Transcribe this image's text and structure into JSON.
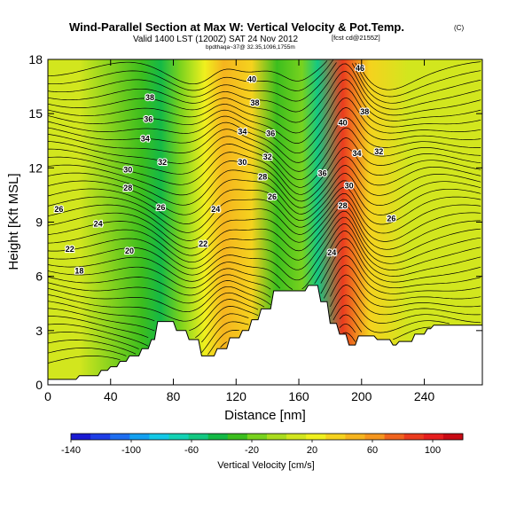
{
  "chart_data": {
    "type": "heatmap",
    "title": "Wind-Parallel Section at Max W: Vertical Velocity & Pot.Temp.",
    "title_mark": "(C)",
    "subtitle": "Valid 1400 LST (1200Z) SAT 24 Nov 2012",
    "subtitle_note": "[fcst cd@2155Z]",
    "subtitle2": "bpdthaqa~37@ 32.35,1096,1755m",
    "xlabel": "Distance [nm]",
    "ylabel": "Height [Kft MSL]",
    "xlim": [
      0,
      277
    ],
    "ylim": [
      0,
      18
    ],
    "xticks": [
      0,
      40,
      80,
      120,
      160,
      200,
      240
    ],
    "yticks": [
      0,
      3,
      6,
      9,
      12,
      15,
      18
    ],
    "grid": false,
    "colorbar": {
      "label": "Vertical Velocity [cm/s]",
      "ticks": [
        -140,
        -100,
        -60,
        -20,
        20,
        60,
        100
      ],
      "range": [
        -140,
        120
      ],
      "colors": [
        "#1a1ad2",
        "#1e3ee6",
        "#1e6ef0",
        "#14a0f0",
        "#14c8e6",
        "#14d2b4",
        "#14c882",
        "#14b946",
        "#3cbe1e",
        "#78d21e",
        "#aadc1e",
        "#d2e61e",
        "#f0f01e",
        "#f5d21e",
        "#f5b41e",
        "#f5961e",
        "#f0641e",
        "#eb3c1e",
        "#e61e1e",
        "#c80a14"
      ]
    },
    "terrain_profile": {
      "x": [
        0,
        18,
        20,
        32,
        34,
        38,
        40,
        44,
        46,
        50,
        52,
        58,
        60,
        64,
        66,
        68,
        70,
        80,
        82,
        88,
        90,
        96,
        98,
        106,
        108,
        114,
        116,
        122,
        124,
        128,
        130,
        134,
        136,
        142,
        144,
        164,
        166,
        172,
        174,
        178,
        180,
        184,
        186,
        190,
        192,
        196,
        198,
        208,
        210,
        218,
        220,
        222,
        224,
        232,
        234,
        240,
        242,
        244,
        246,
        277
      ],
      "height": [
        0.3,
        0.3,
        0.5,
        0.5,
        0.8,
        0.8,
        1.0,
        1.0,
        1.3,
        1.3,
        1.6,
        1.6,
        2.0,
        2.0,
        2.5,
        2.5,
        3.5,
        3.5,
        3.0,
        3.0,
        2.5,
        2.5,
        1.6,
        1.6,
        2.0,
        2.0,
        2.6,
        2.6,
        3.0,
        3.0,
        3.6,
        3.6,
        4.2,
        4.2,
        5.2,
        5.2,
        5.5,
        5.5,
        4.6,
        4.6,
        3.4,
        3.4,
        2.8,
        2.8,
        2.2,
        2.2,
        2.7,
        2.7,
        2.5,
        2.5,
        2.2,
        2.2,
        2.4,
        2.4,
        2.8,
        2.8,
        3.1,
        3.1,
        3.3,
        3.3
      ]
    },
    "velocity_features": [
      {
        "x": 0,
        "w": 8
      },
      {
        "x": 20,
        "w": 10
      },
      {
        "x": 60,
        "w": -25
      },
      {
        "x": 72,
        "w": -45
      },
      {
        "x": 84,
        "w": -20
      },
      {
        "x": 100,
        "w": 25
      },
      {
        "x": 112,
        "w": 45
      },
      {
        "x": 130,
        "w": 30
      },
      {
        "x": 146,
        "w": -30
      },
      {
        "x": 162,
        "w": -15
      },
      {
        "x": 172,
        "w": -50
      },
      {
        "x": 188,
        "w": 90
      },
      {
        "x": 205,
        "w": 35
      },
      {
        "x": 230,
        "w": 15
      },
      {
        "x": 277,
        "w": 10
      }
    ],
    "contour_labels": [
      {
        "text": "38",
        "x": 65,
        "y": 15.9
      },
      {
        "text": "36",
        "x": 64,
        "y": 14.7
      },
      {
        "text": "34",
        "x": 62,
        "y": 13.6
      },
      {
        "text": "32",
        "x": 73,
        "y": 12.3
      },
      {
        "text": "30",
        "x": 51,
        "y": 11.9
      },
      {
        "text": "28",
        "x": 51,
        "y": 10.9
      },
      {
        "text": "26",
        "x": 7,
        "y": 9.7
      },
      {
        "text": "26",
        "x": 72,
        "y": 9.8
      },
      {
        "text": "24",
        "x": 32,
        "y": 8.9
      },
      {
        "text": "22",
        "x": 14,
        "y": 7.5
      },
      {
        "text": "20",
        "x": 52,
        "y": 7.4
      },
      {
        "text": "18",
        "x": 20,
        "y": 6.3
      },
      {
        "text": "40",
        "x": 130,
        "y": 16.9
      },
      {
        "text": "38",
        "x": 132,
        "y": 15.6
      },
      {
        "text": "36",
        "x": 142,
        "y": 13.9
      },
      {
        "text": "34",
        "x": 124,
        "y": 14.0
      },
      {
        "text": "32",
        "x": 140,
        "y": 12.6
      },
      {
        "text": "30",
        "x": 124,
        "y": 12.3
      },
      {
        "text": "28",
        "x": 137,
        "y": 11.5
      },
      {
        "text": "26",
        "x": 143,
        "y": 10.4
      },
      {
        "text": "24",
        "x": 107,
        "y": 9.7
      },
      {
        "text": "22",
        "x": 99,
        "y": 7.8
      },
      {
        "text": "46",
        "x": 199,
        "y": 17.5
      },
      {
        "text": "40",
        "x": 188,
        "y": 14.5
      },
      {
        "text": "38",
        "x": 202,
        "y": 15.1
      },
      {
        "text": "34",
        "x": 197,
        "y": 12.8
      },
      {
        "text": "32",
        "x": 211,
        "y": 12.9
      },
      {
        "text": "36",
        "x": 175,
        "y": 11.7
      },
      {
        "text": "30",
        "x": 192,
        "y": 11.0
      },
      {
        "text": "28",
        "x": 188,
        "y": 9.9
      },
      {
        "text": "26",
        "x": 219,
        "y": 9.2
      },
      {
        "text": "24",
        "x": 181,
        "y": 7.3
      }
    ]
  }
}
